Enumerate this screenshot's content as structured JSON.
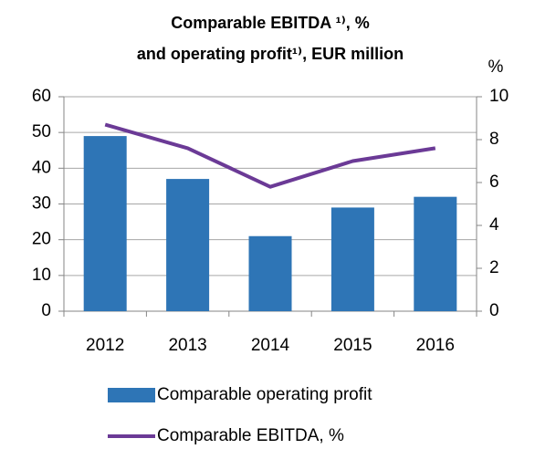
{
  "chart_data": {
    "type": "bar_line",
    "title": [
      "Comparable EBITDA ¹⁾, %",
      "and operating profit¹⁾, EUR million"
    ],
    "y2_label": "%",
    "categories": [
      "2012",
      "2013",
      "2014",
      "2015",
      "2016"
    ],
    "series": [
      {
        "name": "Comparable operating profit",
        "type": "bar",
        "color": "#2e75b6",
        "values": [
          49,
          37,
          21,
          29,
          32
        ]
      },
      {
        "name": "Comparable EBITDA, %",
        "type": "line",
        "axis": "y2",
        "color": "#6b3a96",
        "values": [
          8.7,
          7.6,
          5.8,
          7.0,
          7.6
        ]
      }
    ],
    "ylim": [
      0,
      60
    ],
    "yticks": [
      0,
      10,
      20,
      30,
      40,
      50,
      60
    ],
    "y2lim": [
      0,
      10
    ],
    "y2ticks": [
      0,
      2,
      4,
      6,
      8,
      10
    ],
    "grid": true
  }
}
